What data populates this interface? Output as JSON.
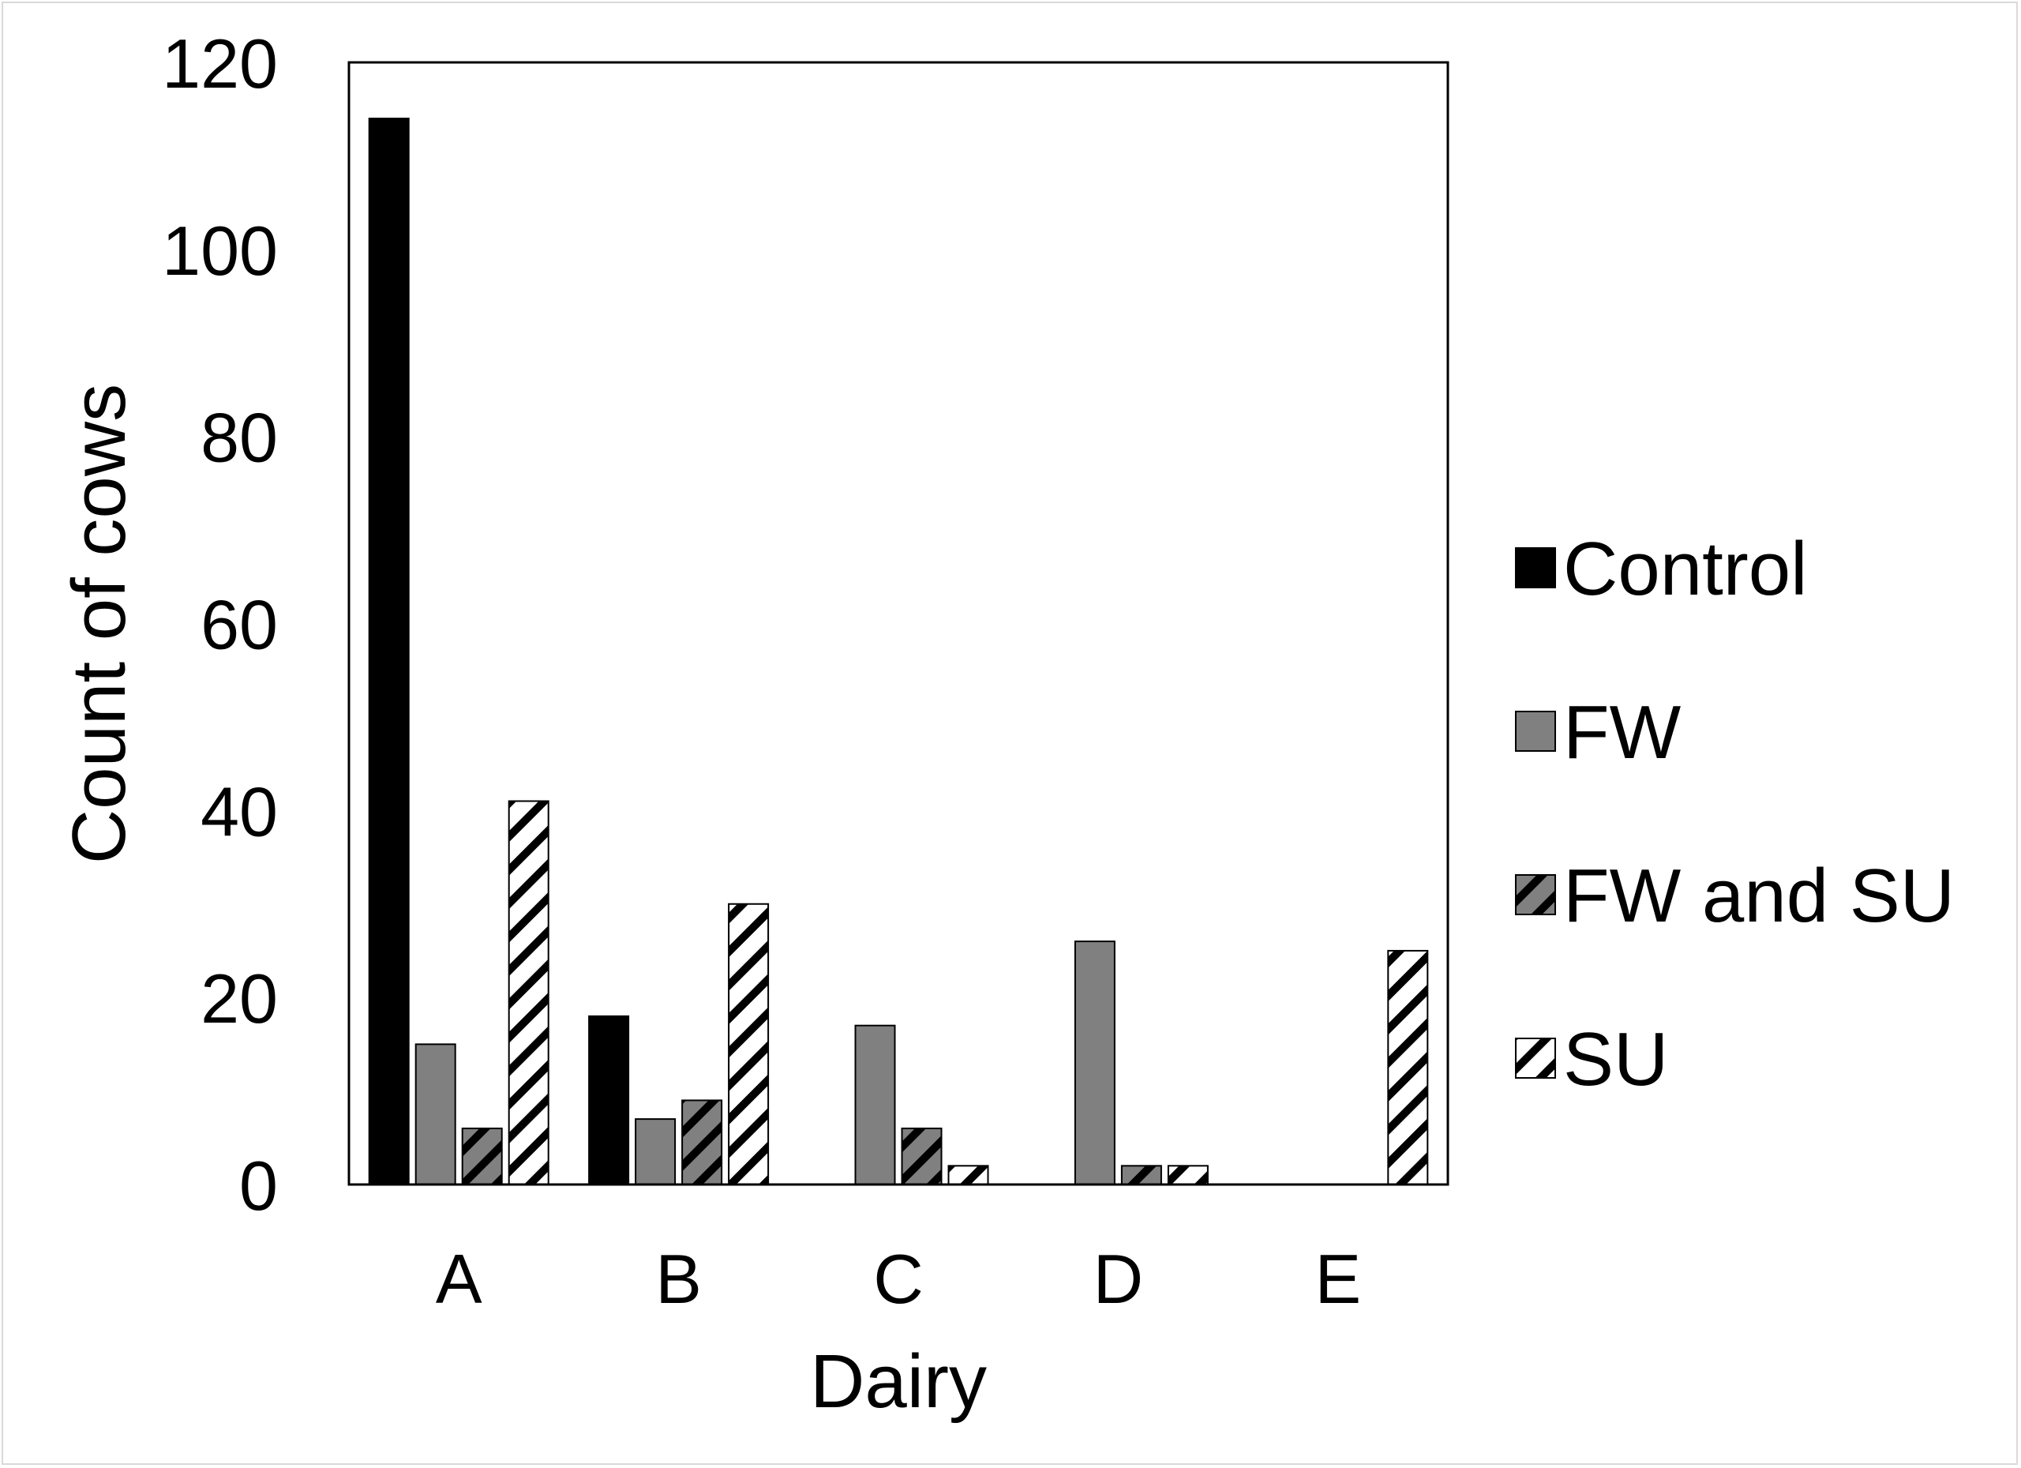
{
  "chart_data": {
    "type": "bar",
    "title": "",
    "xlabel": "Dairy",
    "ylabel": "Count of cows",
    "categories": [
      "A",
      "B",
      "C",
      "D",
      "E"
    ],
    "ylim": [
      0,
      120
    ],
    "yticks": [
      "0",
      "20",
      "40",
      "60",
      "80",
      "100",
      "120"
    ],
    "grid": false,
    "legend_position": "right",
    "series": [
      {
        "name": "Control",
        "values": [
          114,
          18,
          0,
          0,
          0
        ],
        "fill": "#000000",
        "pattern": "solid"
      },
      {
        "name": "FW",
        "values": [
          15,
          7,
          17,
          26,
          0
        ],
        "fill": "#808080",
        "pattern": "solid"
      },
      {
        "name": "FW and SU",
        "values": [
          6,
          9,
          6,
          2,
          0
        ],
        "fill": "#808080",
        "pattern": "hatch"
      },
      {
        "name": "SU",
        "values": [
          41,
          30,
          2,
          2,
          25
        ],
        "fill": "#ffffff",
        "pattern": "hatch"
      }
    ]
  }
}
